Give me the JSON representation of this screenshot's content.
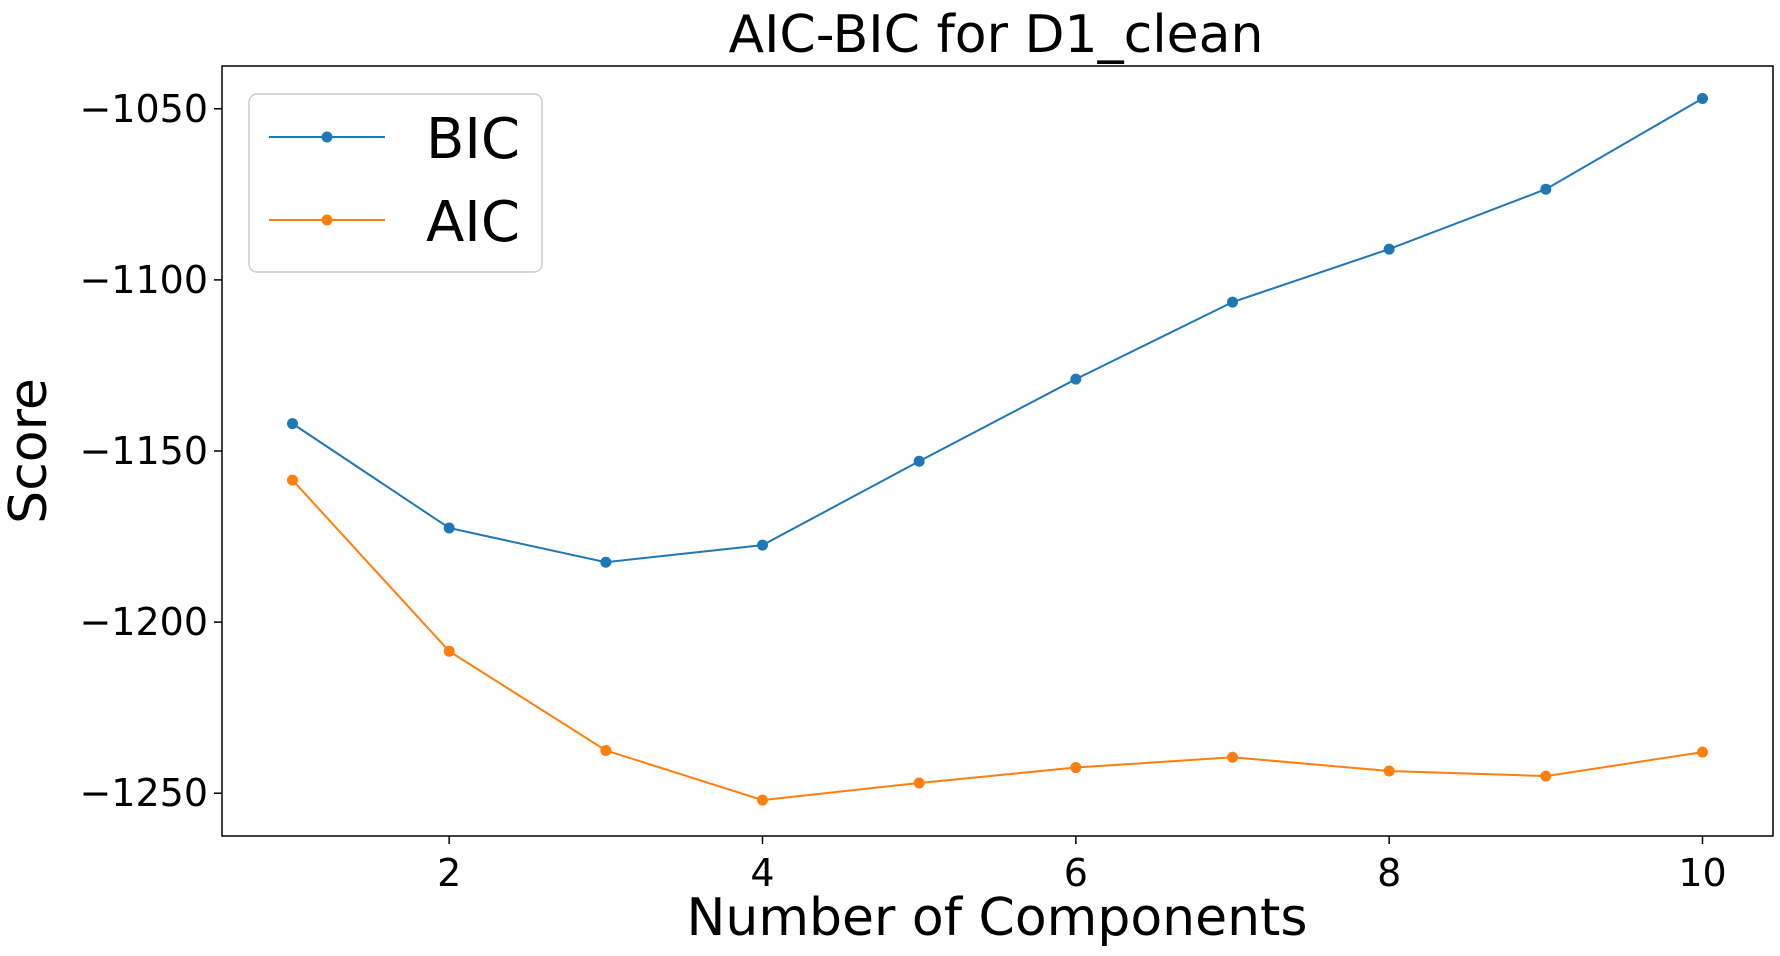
{
  "chart_data": {
    "type": "line",
    "title": "AIC-BIC for D1_clean",
    "xlabel": "Number of Components",
    "ylabel": "Score",
    "x": [
      1,
      2,
      3,
      4,
      5,
      6,
      7,
      8,
      9,
      10
    ],
    "xticks": [
      2,
      4,
      6,
      8,
      10
    ],
    "xtick_labels": [
      "2",
      "4",
      "6",
      "8",
      "10"
    ],
    "yticks": [
      -1250,
      -1200,
      -1150,
      -1100,
      -1050
    ],
    "ytick_labels": [
      "−1250",
      "−1200",
      "−1150",
      "−1100",
      "−1050"
    ],
    "xlim": [
      0.55,
      10.45
    ],
    "ylim": [
      -1262.5,
      -1037.5
    ],
    "grid": false,
    "legend_position": "top-left",
    "series": [
      {
        "name": "BIC",
        "color": "#1f77b4",
        "marker": "circle",
        "values": [
          -1142,
          -1172.5,
          -1182.5,
          -1177.5,
          -1153,
          -1129,
          -1106.5,
          -1091,
          -1073.5,
          -1047
        ]
      },
      {
        "name": "AIC",
        "color": "#ff7f0e",
        "marker": "circle",
        "values": [
          -1158.5,
          -1208.5,
          -1237.5,
          -1252,
          -1247,
          -1242.5,
          -1239.5,
          -1243.5,
          -1245,
          -1238
        ]
      }
    ]
  }
}
